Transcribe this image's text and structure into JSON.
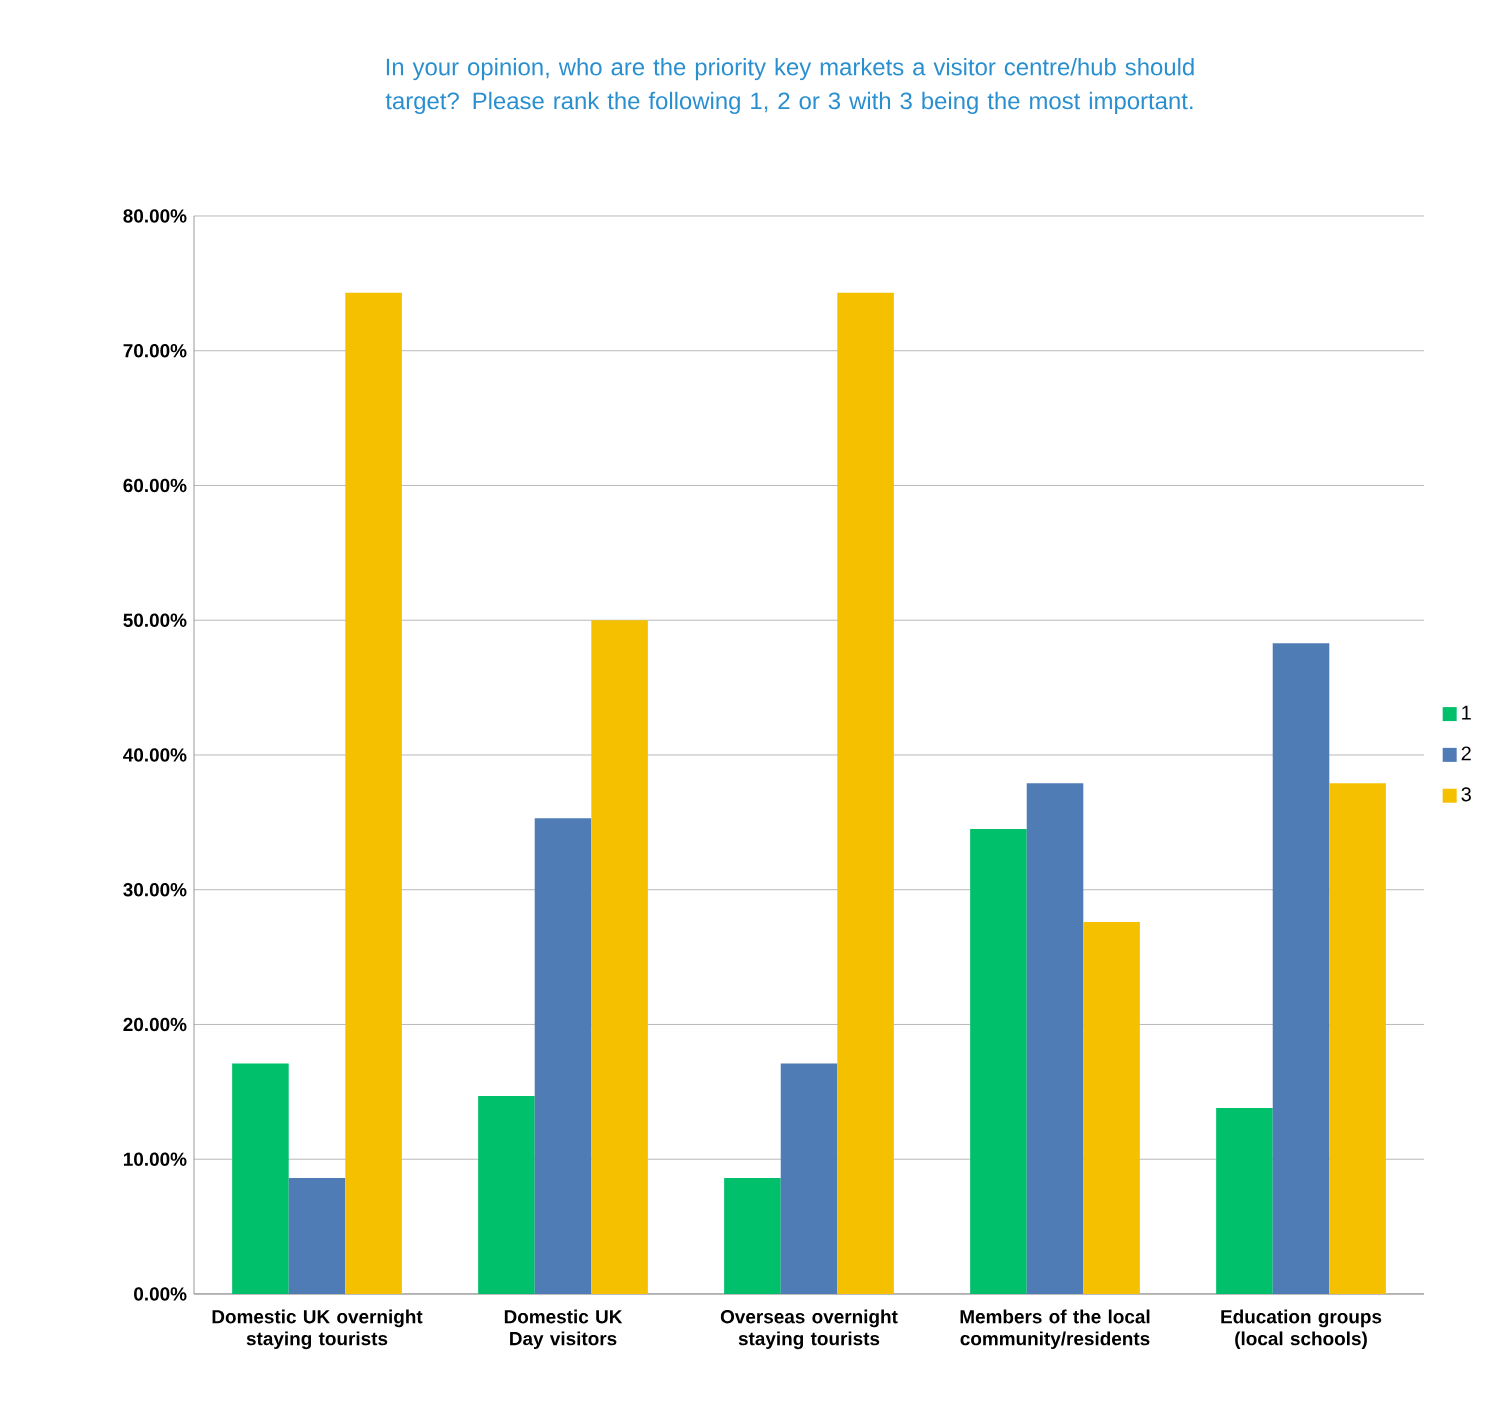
{
  "chart_data": {
    "type": "bar",
    "title": "In your opinion, who are the priority key markets a visitor centre/hub should target? Please rank the following 1, 2 or 3 with 3 being the most important.",
    "categories": [
      "Domestic UK overnight staying tourists",
      "Domestic UK Day visitors",
      "Overseas overnight staying tourists",
      "Members of the local community/residents",
      "Education groups (local schools)"
    ],
    "series": [
      {
        "name": "1",
        "color": "#00c06b",
        "values": [
          17.1,
          14.7,
          8.6,
          34.5,
          13.8
        ]
      },
      {
        "name": "2",
        "color": "#4f7cb5",
        "values": [
          8.6,
          35.3,
          17.1,
          37.9,
          48.3
        ]
      },
      {
        "name": "3",
        "color": "#f5c000",
        "values": [
          74.3,
          50.0,
          74.3,
          27.6,
          37.9
        ]
      }
    ],
    "ylim": [
      0,
      80
    ],
    "yticks": [
      {
        "value": 0,
        "label": "0.00%"
      },
      {
        "value": 10,
        "label": "10.00%"
      },
      {
        "value": 20,
        "label": "20.00%"
      },
      {
        "value": 30,
        "label": "30.00%"
      },
      {
        "value": 40,
        "label": "40.00%"
      },
      {
        "value": 50,
        "label": "50.00%"
      },
      {
        "value": 60,
        "label": "60.00%"
      },
      {
        "value": 70,
        "label": "70.00%"
      },
      {
        "value": 80,
        "label": "80.00%"
      }
    ],
    "grid": "y",
    "legend": "right"
  }
}
